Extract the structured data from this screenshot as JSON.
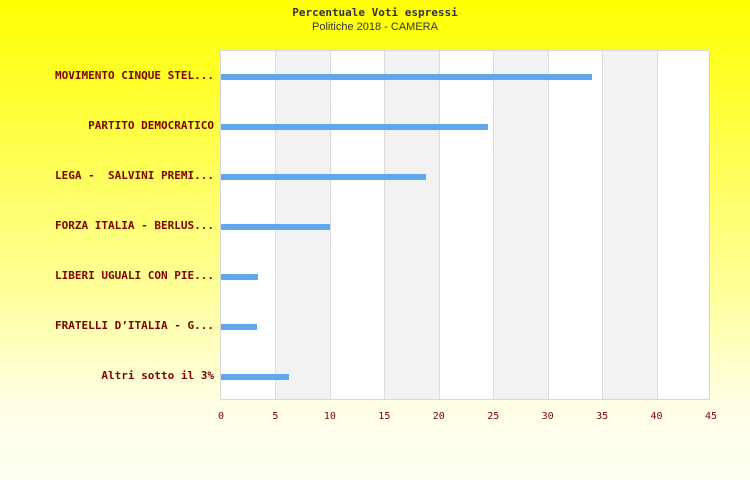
{
  "chart_data": {
    "type": "bar",
    "orientation": "horizontal",
    "title": "Percentuale Voti espressi",
    "subtitle": "Politiche 2018 - CAMERA",
    "categories": [
      "MOVIMENTO CINQUE STEL...",
      "PARTITO DEMOCRATICO",
      "LEGA -  SALVINI PREMI...",
      "FORZA ITALIA - BERLUS...",
      "LIBERI UGUALI CON PIE...",
      "FRATELLI D’ITALIA - G...",
      "Altri sotto il 3%"
    ],
    "values": [
      34.1,
      24.5,
      18.8,
      10.0,
      3.4,
      3.3,
      6.2
    ],
    "xlabel": "",
    "ylabel": "",
    "xlim": [
      0,
      45
    ],
    "xticks": [
      "0",
      "5",
      "10",
      "15",
      "20",
      "25",
      "30",
      "35",
      "40",
      "45"
    ],
    "grid": true,
    "legend": null,
    "bar_color": "#5fa8f0",
    "label_color": "#800000"
  }
}
